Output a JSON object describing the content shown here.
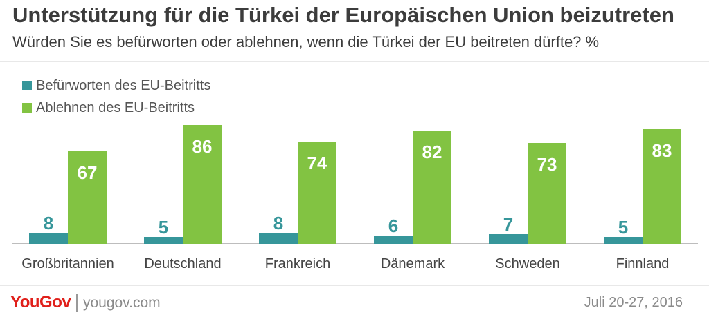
{
  "title": "Unterstützung für die Türkei der Europäischen Union beizutreten",
  "subtitle": "Würden Sie es befürworten oder ablehnen, wenn die Türkei der EU beitreten dürfte? %",
  "colors": {
    "support": "#36969a",
    "oppose": "#82c342"
  },
  "legend": [
    {
      "label": "Befürworten des EU-Beitritts",
      "color": "#36969a"
    },
    {
      "label": "Ablehnen des EU-Beitritts",
      "color": "#82c342"
    }
  ],
  "chart_data": {
    "type": "bar",
    "title": "Unterstützung für die Türkei der Europäischen Union beizutreten",
    "subtitle": "Würden Sie es befürworten oder ablehnen, wenn die Türkei der EU beitreten dürfte? %",
    "categories": [
      "Großbritannien",
      "Deutschland",
      "Frankreich",
      "Dänemark",
      "Schweden",
      "Finnland"
    ],
    "series": [
      {
        "name": "Befürworten des EU-Beitritts",
        "values": [
          8,
          5,
          8,
          6,
          7,
          5
        ]
      },
      {
        "name": "Ablehnen des EU-Beitritts",
        "values": [
          67,
          86,
          74,
          82,
          73,
          83
        ]
      }
    ],
    "ylim": [
      0,
      100
    ],
    "grid": false,
    "legend_position": "top-left"
  },
  "footer": {
    "logo": "YouGov",
    "website": "yougov.com",
    "date": "Juli 20-27, 2016"
  }
}
